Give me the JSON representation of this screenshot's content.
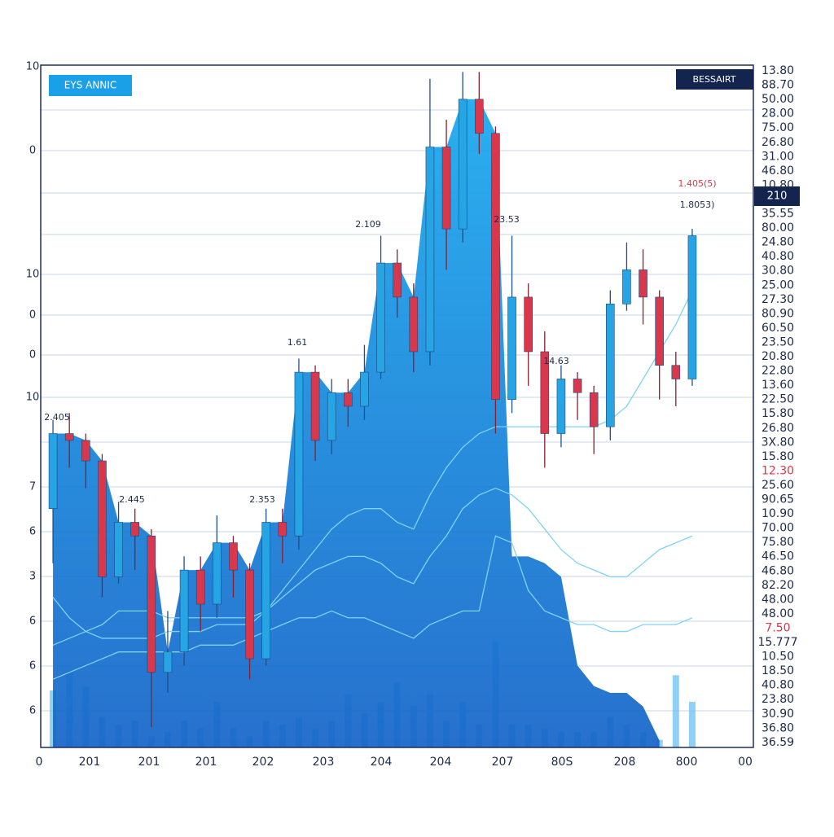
{
  "chart_data": {
    "type": "candlestick",
    "badge": "EYS ANNIC",
    "header_tag": "BESSAIRT",
    "price_tag": "210",
    "ylim": [
      0,
      100
    ],
    "volume_lim": [
      0,
      150
    ],
    "up_color": "#27a4e4",
    "down_color": "#d8374c",
    "area_color": "#1590e6",
    "volume_color": "#6cc0f2",
    "left_labels": [
      "10",
      "0",
      "10",
      "0",
      "0",
      "10",
      "7",
      "6",
      "3",
      "6",
      "6",
      "6"
    ],
    "right_labels": [
      "13.80",
      "88.70",
      "50.00",
      "28.00",
      "75.00",
      "26.80",
      "31.00",
      "46.80",
      "10.80",
      "35.55",
      "80.00",
      "24.80",
      "40.80",
      "30.80",
      "25.00",
      "27.30",
      "80.90",
      "60.50",
      "23.50",
      "20.80",
      "22.80",
      "13.60",
      "22.50",
      "15.80",
      "26.80",
      "3X.80",
      "15.80",
      "12.30",
      "25.60",
      "90.65",
      "10.90",
      "70.00",
      "75.80",
      "46.50",
      "46.80",
      "82.20",
      "48.00",
      "48.00",
      "7.50",
      "15.777",
      "10.50",
      "18.50",
      "40.80",
      "23.80",
      "30.90",
      "36.80",
      "36.59"
    ],
    "x_labels": [
      "0",
      "201",
      "201",
      "201",
      "202",
      "203",
      "204",
      "204",
      "207",
      "80S",
      "208",
      "800",
      "00"
    ],
    "annotations": [
      "2.405",
      "2.445",
      "2.353",
      "1.61",
      "2.109",
      "23.53",
      "14.63",
      "1.405(5)",
      "1.8053)"
    ],
    "open": [
      35,
      46,
      45,
      42,
      25,
      33,
      31,
      11,
      14,
      26,
      21,
      30,
      26,
      13,
      33,
      31,
      55,
      45,
      52,
      50,
      55,
      71,
      66,
      58,
      88,
      76,
      95,
      90,
      51,
      66,
      58,
      46,
      54,
      52,
      47,
      65,
      70,
      66,
      56,
      54
    ],
    "high": [
      48,
      49,
      46,
      43,
      36,
      35,
      32,
      20,
      28,
      28,
      34,
      31,
      27,
      35,
      35,
      57,
      56,
      54,
      54,
      59,
      75,
      73,
      68,
      98,
      92,
      99,
      99,
      91,
      75,
      68,
      61,
      56,
      55,
      53,
      67,
      74,
      73,
      67,
      58,
      76
    ],
    "low": [
      27,
      41,
      38,
      22,
      24,
      26,
      3,
      8,
      12,
      17,
      19,
      22,
      10,
      12,
      27,
      29,
      42,
      43,
      47,
      48,
      54,
      63,
      55,
      56,
      70,
      74,
      87,
      46,
      49,
      53,
      41,
      44,
      48,
      43,
      45,
      64,
      62,
      51,
      50,
      53
    ],
    "close": [
      46,
      45,
      42,
      25,
      33,
      31,
      11,
      14,
      26,
      21,
      30,
      26,
      13,
      33,
      31,
      55,
      45,
      52,
      50,
      55,
      71,
      66,
      58,
      88,
      76,
      95,
      90,
      51,
      66,
      58,
      46,
      54,
      52,
      47,
      65,
      70,
      66,
      56,
      54,
      75
    ],
    "area": [
      46,
      46,
      45,
      42,
      33,
      33,
      31,
      14,
      26,
      26,
      30,
      30,
      26,
      33,
      33,
      55,
      55,
      52,
      52,
      55,
      71,
      71,
      66,
      88,
      88,
      95,
      95,
      90,
      28,
      28,
      27,
      25,
      12,
      9,
      8,
      8,
      6,
      1,
      null,
      null
    ],
    "lines": [
      [
        22,
        19,
        17,
        16,
        16,
        16,
        16,
        17,
        17,
        17,
        18,
        18,
        18,
        20,
        23,
        26,
        29,
        32,
        34,
        35,
        35,
        33,
        32,
        37,
        41,
        44,
        46,
        47,
        47,
        47,
        47,
        47,
        47,
        47,
        48,
        50,
        54,
        58,
        62,
        67
      ],
      [
        15,
        16,
        17,
        18,
        20,
        20,
        20,
        19,
        19,
        19,
        19,
        19,
        19,
        20,
        22,
        24,
        26,
        27,
        28,
        28,
        27,
        25,
        24,
        28,
        31,
        35,
        37,
        38,
        37,
        35,
        32,
        29,
        27,
        26,
        25,
        25,
        27,
        29,
        30,
        31
      ],
      [
        10,
        11,
        12,
        13,
        14,
        14,
        14,
        14,
        14,
        15,
        15,
        15,
        16,
        17,
        18,
        19,
        19,
        20,
        19,
        19,
        18,
        17,
        16,
        18,
        19,
        20,
        20,
        31,
        30,
        23,
        20,
        19,
        18,
        18,
        17,
        17,
        18,
        18,
        18,
        19
      ]
    ],
    "volume": [
      75,
      100,
      80,
      40,
      30,
      35,
      15,
      20,
      35,
      25,
      60,
      25,
      15,
      35,
      30,
      40,
      25,
      35,
      70,
      45,
      60,
      85,
      55,
      70,
      35,
      60,
      30,
      140,
      30,
      30,
      25,
      20,
      20,
      20,
      40,
      30,
      20,
      10,
      95,
      60
    ]
  }
}
